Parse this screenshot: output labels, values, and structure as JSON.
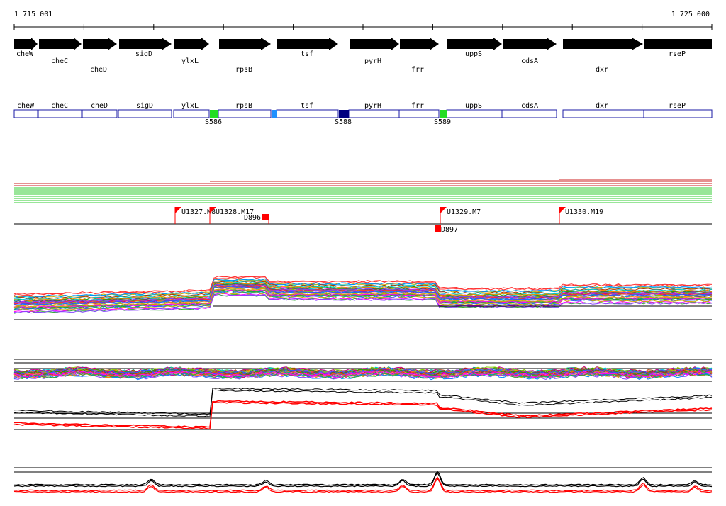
{
  "ruler": {
    "start_label": "1 715 001",
    "end_label": "1 725 000"
  },
  "genes": [
    {
      "name": "cheW"
    },
    {
      "name": "cheC"
    },
    {
      "name": "cheD"
    },
    {
      "name": "sigD"
    },
    {
      "name": "ylxL"
    },
    {
      "name": "rpsB"
    },
    {
      "name": "tsf"
    },
    {
      "name": "pyrH"
    },
    {
      "name": "frr"
    },
    {
      "name": "uppS"
    },
    {
      "name": "cdsA"
    },
    {
      "name": "dxr"
    },
    {
      "name": "rseP"
    }
  ],
  "segments": [
    {
      "name": "S586"
    },
    {
      "name": "S588"
    },
    {
      "name": "S589"
    }
  ],
  "features": [
    {
      "name": "U1327.M8"
    },
    {
      "name": "U1328.M17"
    },
    {
      "name": "D896"
    },
    {
      "name": "U1329.M7"
    },
    {
      "name": "U1330.M19"
    },
    {
      "name": "D897"
    }
  ],
  "colors": {
    "gene_arrow": "#000000",
    "box_outline": "#1a1aa6",
    "segment_S586": "#22dd22",
    "segment_S588": "#000080",
    "segment_S589": "#22dd22",
    "segment_small": "#1e90ff",
    "marker": "#ff0000",
    "overview_green": "#33cc33",
    "overview_red": "#cc2222"
  }
}
